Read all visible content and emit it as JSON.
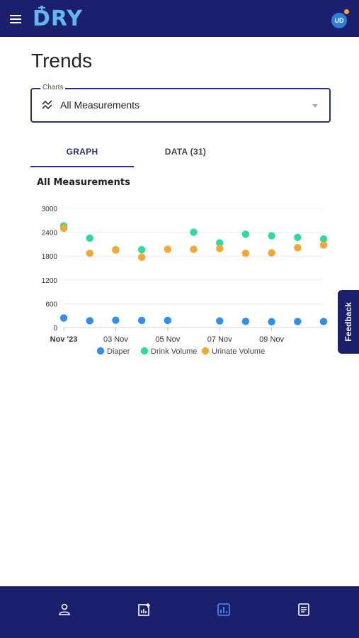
{
  "header": {
    "logo_text": "DRY",
    "avatar_initials": "UD",
    "avatar_color": "#2e7fd6",
    "notification_dot_color": "#f5a623",
    "icons": [
      "menu-icon"
    ]
  },
  "page": {
    "title": "Trends"
  },
  "charts_select": {
    "legend": "Charts",
    "value": "All Measurements",
    "icon": "trending-icon"
  },
  "tabs": [
    {
      "label": "GRAPH",
      "active": true
    },
    {
      "label": "DATA (31)",
      "active": false
    }
  ],
  "feedback": {
    "label": "Feedback"
  },
  "bottom_nav": {
    "items": [
      {
        "icon": "person-icon",
        "active": false
      },
      {
        "icon": "add-chart-icon",
        "active": false
      },
      {
        "icon": "bar-chart-icon",
        "active": true
      },
      {
        "icon": "notes-icon",
        "active": false
      }
    ]
  },
  "chart_data": {
    "type": "scatter",
    "title": "All Measurements",
    "xlabel": "",
    "ylabel": "",
    "ylim": [
      0,
      3000
    ],
    "yticks": [
      0,
      600,
      1200,
      1800,
      2400,
      3000
    ],
    "x_tick_labels": [
      "Nov '23",
      "03 Nov",
      "05 Nov",
      "07 Nov",
      "09 Nov"
    ],
    "x_tick_days": [
      1,
      3,
      5,
      7,
      9
    ],
    "x_range_days": [
      1,
      11
    ],
    "grid": true,
    "legend_position": "bottom",
    "series": [
      {
        "name": "Diaper",
        "color": "#2f8fef",
        "x": [
          1,
          2,
          3,
          4,
          5,
          7,
          8,
          9,
          10,
          11
        ],
        "values": [
          240,
          170,
          185,
          180,
          180,
          165,
          155,
          145,
          150,
          150
        ]
      },
      {
        "name": "Drink Volume",
        "color": "#2bdc9a",
        "x": [
          1,
          2,
          3,
          4,
          6,
          7,
          8,
          9,
          10,
          11
        ],
        "values": [
          2560,
          2250,
          1960,
          1960,
          2400,
          2130,
          2350,
          2310,
          2270,
          2230
        ]
      },
      {
        "name": "Urinate Volume",
        "color": "#f7a62e",
        "x": [
          1,
          2,
          3,
          4,
          5,
          6,
          7,
          8,
          9,
          10,
          11
        ],
        "values": [
          2500,
          1870,
          1950,
          1770,
          1970,
          1970,
          1990,
          1870,
          1880,
          2010,
          2080
        ]
      }
    ]
  }
}
